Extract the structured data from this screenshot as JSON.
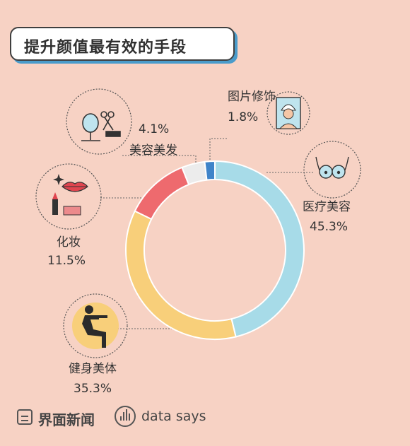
{
  "header": {
    "title": "提升颜值最有效的手段"
  },
  "chart_data": {
    "type": "pie",
    "title": "提升颜值最有效的手段",
    "categories": [
      "医疗美容",
      "健身美体",
      "化妆",
      "美容美发",
      "图片修饰"
    ],
    "values": [
      45.3,
      35.3,
      11.5,
      4.1,
      1.8
    ],
    "value_labels": [
      "45.3%",
      "35.3%",
      "11.5%",
      "4.1%",
      "1.8%"
    ],
    "colors": [
      "#a7dbe8",
      "#f8cf7a",
      "#ee6a6e",
      "#ececec",
      "#3f84c9"
    ],
    "donut": true
  },
  "icons": [
    "mirror-scissors-icon",
    "lips-lipstick-icon",
    "towel-woman-icon",
    "chest-icon",
    "squat-icon"
  ],
  "footer": {
    "brand1": "界面新闻",
    "brand2": "data says"
  }
}
